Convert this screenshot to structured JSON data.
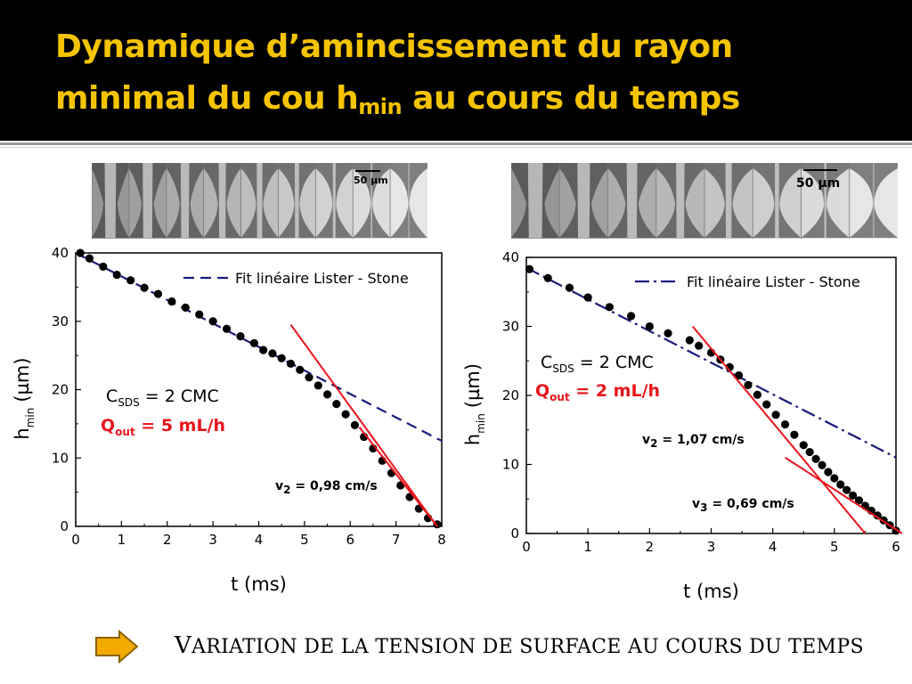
{
  "slide": {
    "title_line1": "Dynamique d’amincissement du rayon",
    "title_line2_start": "minimal du cou h",
    "title_sub": "min",
    "title_line2_end": " au cours du temps",
    "colors": {
      "header_bg": "#000000",
      "title": "#f5c400",
      "highlight_red": "#e8141b",
      "fit_line": "#1a1a7a"
    }
  },
  "images": {
    "left_scale": "50 µm",
    "right_scale": "50 µm"
  },
  "left_panel": {
    "c_label": "C",
    "c_sub": "SDS",
    "c_value": " = 2 CMC",
    "q_label": "Q",
    "q_sub": "out",
    "q_value": " = 5 mL/h",
    "v_label": "v",
    "v_sub": "2",
    "v_value": " = 0,98 cm/s"
  },
  "right_panel": {
    "c_label": "C",
    "c_sub": "SDS",
    "c_value": " = 2 CMC",
    "q_label": "Q",
    "q_sub": "out",
    "q_value": " = 2 mL/h",
    "v2_label": "v",
    "v2_sub": "2",
    "v2_value": " = 1,07 cm/s",
    "v3_label": "v",
    "v3_sub": "3",
    "v3_value": " = 0,69 cm/s"
  },
  "caption": {
    "first_letter": "V",
    "rest": "ARIATION DE LA TENSION DE SURFACE AU COURS DU TEMPS"
  },
  "chart_data": [
    {
      "type": "scatter",
      "xlabel": "t (ms)",
      "ylabel_main": "h",
      "ylabel_sub": "min",
      "ylabel_unit": "(µm)",
      "xlim": [
        0,
        8
      ],
      "ylim": [
        0,
        40
      ],
      "xticks": [
        "0",
        "1",
        "2",
        "3",
        "4",
        "5",
        "6",
        "7",
        "8"
      ],
      "yticks": [
        "0",
        "10",
        "20",
        "30",
        "40"
      ],
      "legend": "Fit linéaire Lister - Stone",
      "legend_position": "top-right",
      "grid": false,
      "series": [
        {
          "points": [
            [
              0.1,
              40.0
            ],
            [
              0.3,
              39.2
            ],
            [
              0.6,
              38.0
            ],
            [
              0.9,
              36.8
            ],
            [
              1.2,
              36.0
            ],
            [
              1.5,
              34.9
            ],
            [
              1.8,
              34.0
            ],
            [
              2.1,
              32.9
            ],
            [
              2.4,
              32.0
            ],
            [
              2.7,
              31.0
            ],
            [
              3.0,
              30.0
            ],
            [
              3.3,
              28.9
            ],
            [
              3.6,
              27.8
            ],
            [
              3.9,
              26.8
            ],
            [
              4.1,
              25.8
            ],
            [
              4.3,
              25.3
            ],
            [
              4.5,
              24.6
            ],
            [
              4.7,
              23.8
            ],
            [
              4.9,
              22.9
            ],
            [
              5.1,
              21.8
            ],
            [
              5.3,
              20.6
            ],
            [
              5.5,
              19.3
            ],
            [
              5.7,
              17.9
            ],
            [
              5.9,
              16.4
            ],
            [
              6.1,
              14.8
            ],
            [
              6.3,
              13.1
            ],
            [
              6.5,
              11.4
            ],
            [
              6.7,
              9.6
            ],
            [
              6.9,
              7.8
            ],
            [
              7.1,
              6.0
            ],
            [
              7.3,
              4.3
            ],
            [
              7.5,
              2.6
            ],
            [
              7.7,
              1.2
            ],
            [
              7.9,
              0.3
            ]
          ]
        }
      ],
      "fit_line": {
        "x": [
          0.0,
          8.0
        ],
        "y": [
          40.0,
          12.5
        ]
      },
      "tangent_lines": [
        {
          "x": [
            4.7,
            7.9
          ],
          "y": [
            29.5,
            0.0
          ]
        },
        {
          "x": [
            6.2,
            7.9
          ],
          "y": [
            14.5,
            0.0
          ]
        }
      ]
    },
    {
      "type": "scatter",
      "xlabel": "t (ms)",
      "ylabel_main": "h",
      "ylabel_sub": "min",
      "ylabel_unit": "(µm)",
      "xlim": [
        0,
        6
      ],
      "ylim": [
        0,
        40
      ],
      "xticks": [
        "0",
        "1",
        "2",
        "3",
        "4",
        "5",
        "6"
      ],
      "yticks": [
        "0",
        "10",
        "20",
        "30",
        "40"
      ],
      "legend": "Fit linéaire Lister - Stone",
      "legend_position": "top-right",
      "grid": false,
      "series": [
        {
          "points": [
            [
              0.05,
              38.3
            ],
            [
              0.35,
              37.0
            ],
            [
              0.7,
              35.6
            ],
            [
              1.0,
              34.2
            ],
            [
              1.35,
              32.8
            ],
            [
              1.7,
              31.5
            ],
            [
              2.0,
              30.0
            ],
            [
              2.3,
              29.0
            ],
            [
              2.65,
              28.0
            ],
            [
              2.8,
              27.2
            ],
            [
              3.0,
              26.2
            ],
            [
              3.15,
              25.2
            ],
            [
              3.3,
              24.1
            ],
            [
              3.45,
              22.9
            ],
            [
              3.6,
              21.5
            ],
            [
              3.75,
              20.1
            ],
            [
              3.9,
              18.7
            ],
            [
              4.05,
              17.2
            ],
            [
              4.2,
              15.8
            ],
            [
              4.35,
              14.3
            ],
            [
              4.5,
              12.8
            ],
            [
              4.6,
              11.8
            ],
            [
              4.7,
              10.8
            ],
            [
              4.8,
              9.9
            ],
            [
              4.9,
              8.9
            ],
            [
              5.0,
              8.0
            ],
            [
              5.1,
              7.1
            ],
            [
              5.2,
              6.3
            ],
            [
              5.3,
              5.5
            ],
            [
              5.4,
              4.8
            ],
            [
              5.5,
              4.0
            ],
            [
              5.6,
              3.3
            ],
            [
              5.7,
              2.6
            ],
            [
              5.8,
              1.9
            ],
            [
              5.9,
              1.2
            ],
            [
              6.0,
              0.4
            ]
          ]
        }
      ],
      "fit_line": {
        "x": [
          0.0,
          6.0
        ],
        "y": [
          38.5,
          11.0
        ]
      },
      "tangent_lines": [
        {
          "x": [
            2.7,
            5.5
          ],
          "y": [
            30.0,
            0.0
          ]
        },
        {
          "x": [
            4.2,
            6.1
          ],
          "y": [
            11.0,
            0.0
          ]
        }
      ]
    }
  ]
}
